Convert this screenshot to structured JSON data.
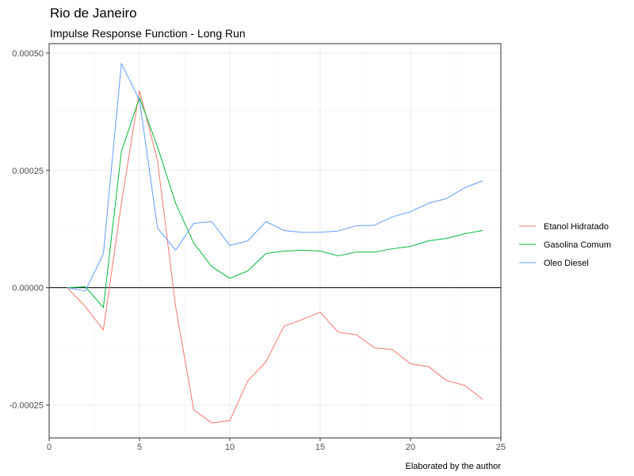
{
  "chart_data": {
    "type": "line",
    "title": "Rio de Janeiro",
    "subtitle": "Impulse Response Function - Long Run",
    "caption": "Elaborated by the author",
    "xlabel": "",
    "ylabel": "",
    "xlim": [
      0,
      25
    ],
    "ylim": [
      -0.00032,
      0.00052
    ],
    "x_ticks": [
      0,
      5,
      10,
      15,
      20,
      25
    ],
    "x_tick_labels": [
      "0",
      "5",
      "10",
      "15",
      "20",
      "25"
    ],
    "y_ticks": [
      -0.00025,
      0,
      0.00025,
      0.0005
    ],
    "y_tick_labels": [
      "-0.00025",
      "0.00000",
      "0.00025",
      "0.00050"
    ],
    "hline": 0,
    "grid": true,
    "legend_position": "right",
    "x": [
      1,
      2,
      3,
      4,
      5,
      6,
      7,
      8,
      9,
      10,
      11,
      12,
      13,
      14,
      15,
      16,
      17,
      18,
      19,
      20,
      21,
      22,
      23,
      24
    ],
    "series": [
      {
        "name": "Etanol Hidratado",
        "color": "#F8766D",
        "values": [
          0,
          -4e-05,
          -9e-05,
          0.00018,
          0.00042,
          0.00027,
          -4e-05,
          -0.00026,
          -0.000288,
          -0.000283,
          -0.000198,
          -0.000158,
          -8.2e-05,
          -6.8e-05,
          -5.2e-05,
          -9.5e-05,
          -0.0001,
          -0.000128,
          -0.000132,
          -0.000162,
          -0.000168,
          -0.000198,
          -0.000208,
          -0.000238
        ]
      },
      {
        "name": "Gasolina Comum",
        "color": "#00BA38",
        "values": [
          0,
          2e-06,
          -4.2e-05,
          0.00029,
          0.000405,
          0.0003,
          0.00018,
          9.5e-05,
          4.5e-05,
          2e-05,
          3.6e-05,
          7.3e-05,
          7.8e-05,
          8e-05,
          7.8e-05,
          6.8e-05,
          7.6e-05,
          7.6e-05,
          8.3e-05,
          8.8e-05,
          0.0001,
          0.000105,
          0.000115,
          0.000122
        ]
      },
      {
        "name": "Oleo Diesel",
        "color": "#619CFF",
        "values": [
          0,
          -7e-06,
          7.2e-05,
          0.000478,
          0.0004,
          0.000127,
          8e-05,
          0.000137,
          0.000141,
          9e-05,
          0.0001,
          0.000141,
          0.000122,
          0.000118,
          0.000118,
          0.000121,
          0.000132,
          0.000133,
          0.000151,
          0.000162,
          0.00018,
          0.00019,
          0.000213,
          0.000228
        ]
      }
    ]
  }
}
